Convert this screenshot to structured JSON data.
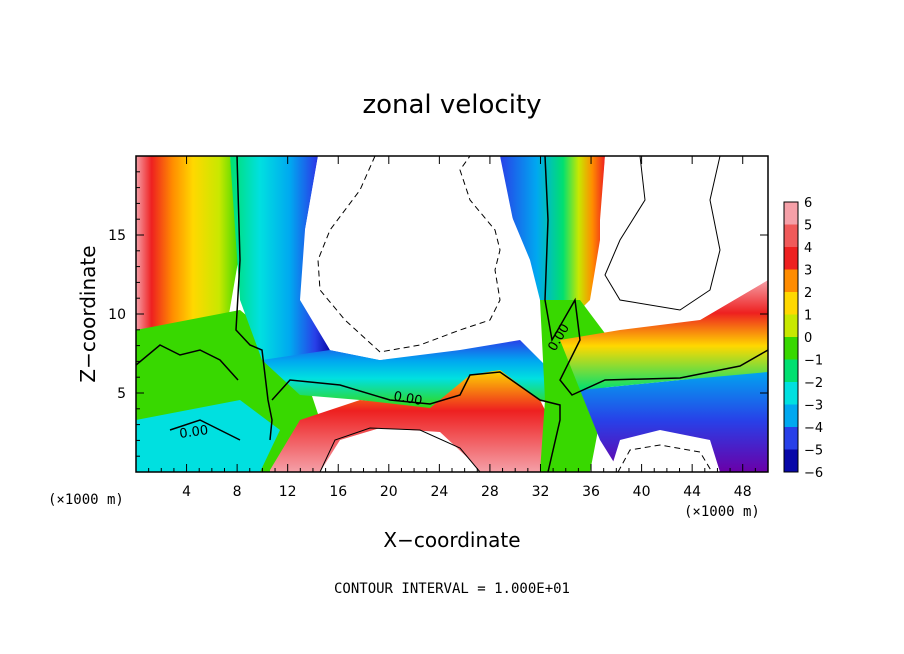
{
  "chart_data": {
    "type": "heatmap",
    "title": "zonal velocity",
    "xlabel": "X−coordinate",
    "ylabel": "Z−coordinate",
    "x_unit_left": "(×1000 m)",
    "x_unit_right": "(×1000 m)",
    "xlim": [
      0,
      50
    ],
    "ylim": [
      0,
      20
    ],
    "x_ticks": [
      4,
      8,
      12,
      16,
      20,
      24,
      28,
      32,
      36,
      40,
      44,
      48
    ],
    "y_ticks": [
      5,
      10,
      15
    ],
    "colorbar": {
      "levels": [
        6,
        5,
        4,
        3,
        2,
        1,
        0,
        -1,
        -2,
        -3,
        -4,
        -5,
        -6
      ],
      "labels": [
        "6",
        "5",
        "4",
        "3",
        "2",
        "1",
        "0",
        "−1",
        "−2",
        "−3",
        "−4",
        "−5",
        "−6"
      ]
    },
    "contour_interval_text": "CONTOUR INTERVAL = 1.000E+01",
    "contour_labels": [
      "0.00",
      "0.00",
      "0.00"
    ]
  },
  "colors": {
    "scale": [
      "#f5a0a8",
      "#f05a5a",
      "#ee2020",
      "#ff8c00",
      "#ffd800",
      "#c8e800",
      "#38d800",
      "#00e070",
      "#00e0e0",
      "#00a8f0",
      "#2840e8",
      "#0808a8",
      "#6a00a8"
    ]
  }
}
